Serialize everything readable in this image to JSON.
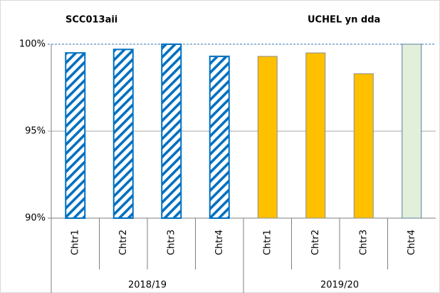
{
  "chart_data": {
    "type": "bar",
    "annotations": [
      "SCC013aii",
      "UCHEL yn dda"
    ],
    "categories": [
      "Chtr1",
      "Chtr2",
      "Chtr3",
      "Chtr4",
      "Chtr1",
      "Chtr2",
      "Chtr3",
      "Chtr4"
    ],
    "groups": [
      "2018/19",
      "2019/20"
    ],
    "values": [
      99.5,
      99.7,
      100,
      99.3,
      99.3,
      99.5,
      98.3,
      100
    ],
    "colors": [
      "#0070c0",
      "#0070c0",
      "#0070c0",
      "#0070c0",
      "#ffc000",
      "#ffc000",
      "#ffc000",
      "#e2efda"
    ],
    "hatched": [
      true,
      true,
      true,
      true,
      false,
      false,
      false,
      false
    ],
    "ylim": [
      90,
      100
    ],
    "yticks": [
      {
        "value": 90,
        "label": "90%"
      },
      {
        "value": 95,
        "label": "95%"
      },
      {
        "value": 100,
        "label": "100%"
      }
    ],
    "grid": true
  }
}
